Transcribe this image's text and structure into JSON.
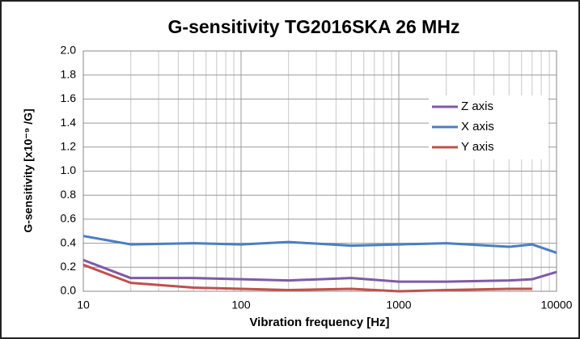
{
  "chart_data": {
    "type": "line",
    "title": "G-sensitivity TG2016SKA 26 MHz",
    "x_label": "Vibration frequency [Hz]",
    "y_label": "G-sensitivity  [x10⁻⁹ /G]",
    "x": [
      10,
      20,
      50,
      100,
      200,
      500,
      1000,
      2000,
      5000,
      7000,
      10000
    ],
    "series": [
      {
        "name": "Z axis",
        "color": "#7f5aa6",
        "values": [
          0.26,
          0.11,
          0.11,
          0.1,
          0.09,
          0.11,
          0.08,
          0.08,
          0.09,
          0.1,
          0.16
        ]
      },
      {
        "name": "X axis",
        "color": "#4a7fc1",
        "values": [
          0.46,
          0.39,
          0.4,
          0.39,
          0.41,
          0.38,
          0.39,
          0.4,
          0.37,
          0.39,
          0.32
        ]
      },
      {
        "name": "Y axis",
        "color": "#c0504d",
        "values": [
          0.22,
          0.07,
          0.03,
          0.02,
          0.01,
          0.02,
          0.0,
          0.01,
          0.02,
          0.02,
          null
        ]
      }
    ],
    "x_log": true,
    "minor_grid": true,
    "grid": true,
    "legend": "upper right",
    "xlim": [
      10,
      10000
    ],
    "xticks": [
      10,
      100,
      1000,
      10000
    ],
    "ylim": [
      0,
      2
    ],
    "yticks": [
      {
        "value": 0,
        "label": "0.0"
      },
      0.2,
      0.4,
      0.6,
      0.8,
      {
        "value": 1,
        "label": "1.0"
      },
      1.2,
      1.4,
      1.6,
      1.8,
      {
        "value": 2,
        "label": "2.0"
      }
    ]
  }
}
